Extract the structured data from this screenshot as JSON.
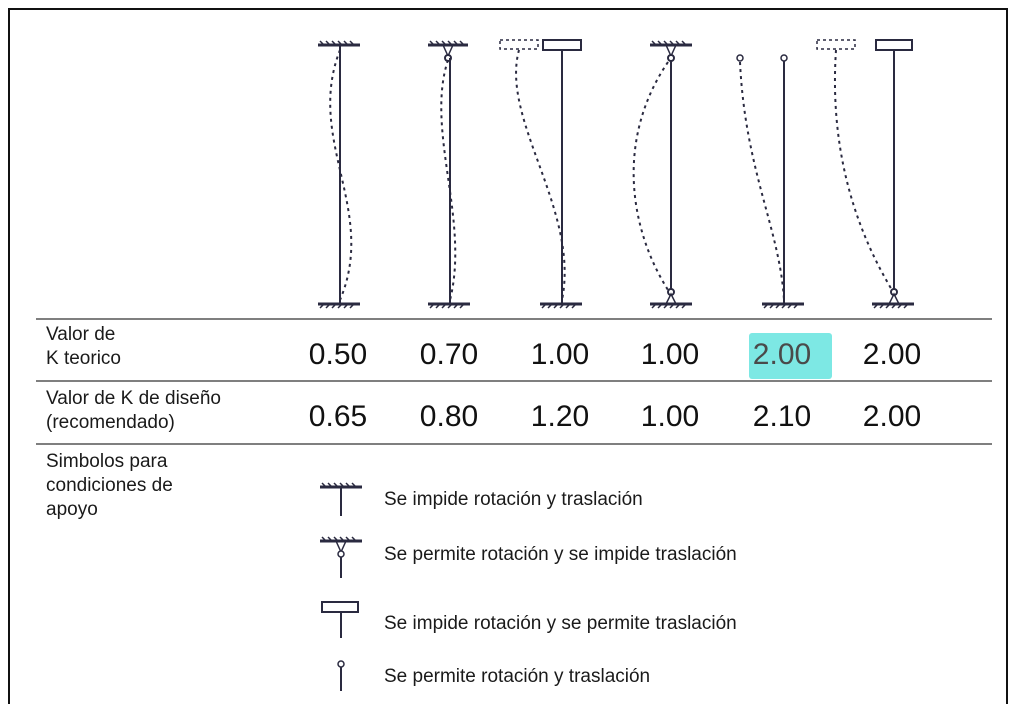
{
  "rows": {
    "theoretical": {
      "label_line1": "Valor de",
      "label_line2": "K teorico",
      "values": [
        "0.50",
        "0.70",
        "1.00",
        "1.00",
        "2.00",
        "2.00"
      ]
    },
    "design": {
      "label_line1": "Valor de K de diseño",
      "label_line2": "(recomendado)",
      "values": [
        "0.65",
        "0.80",
        "1.20",
        "1.00",
        "2.10",
        "2.00"
      ]
    },
    "symbols": {
      "label_line1": "Simbolos para",
      "label_line2": "condiciones de",
      "label_line3": "apoyo"
    }
  },
  "legend": [
    {
      "icon": "fixed-support-icon",
      "text": "Se impide rotación y traslación"
    },
    {
      "icon": "pinned-support-icon",
      "text": "Se permite rotación y se impide traslación"
    },
    {
      "icon": "guided-support-icon",
      "text": "Se impide rotación y se permite traslación"
    },
    {
      "icon": "free-end-icon",
      "text": "Se permite rotación y traslación"
    }
  ],
  "highlight": {
    "row": "theoretical",
    "column": 4,
    "color": "#7de8e4"
  }
}
